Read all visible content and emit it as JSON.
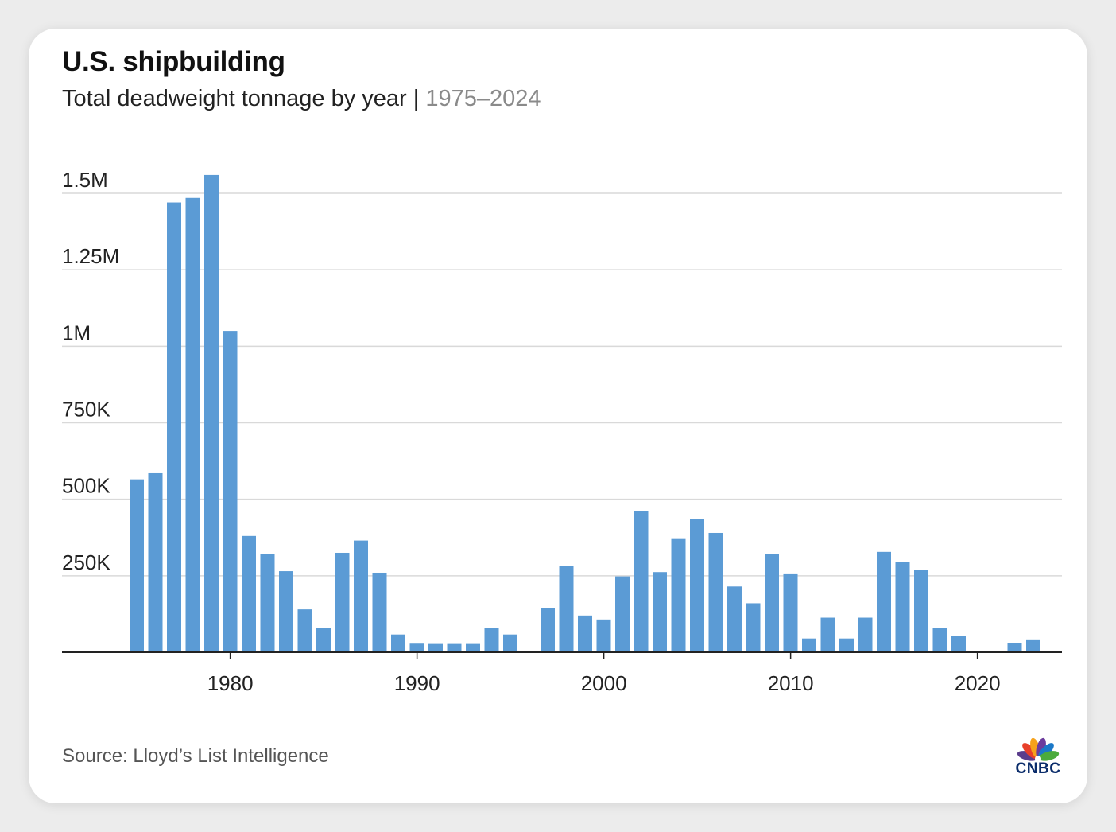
{
  "header": {
    "title": "U.S. shipbuilding",
    "subtitle": "Total deadweight tonnage by year",
    "separator": "|",
    "range": "1975–2024"
  },
  "footer": {
    "source": "Source: Lloyd’s List Intelligence",
    "logo_text": "CNBC"
  },
  "colors": {
    "bar": "#5b9bd5",
    "grid": "#d9d9d9",
    "axis": "#222222"
  },
  "chart_data": {
    "type": "bar",
    "title": "U.S. shipbuilding",
    "subtitle": "Total deadweight tonnage by year | 1975–2024",
    "xlabel": "",
    "ylabel": "",
    "ylim": [
      0,
      1500000
    ],
    "grid": true,
    "y_ticks": [
      {
        "value": 250000,
        "label": "250K"
      },
      {
        "value": 500000,
        "label": "500K"
      },
      {
        "value": 750000,
        "label": "750K"
      },
      {
        "value": 1000000,
        "label": "1M"
      },
      {
        "value": 1250000,
        "label": "1.25M"
      },
      {
        "value": 1500000,
        "label": "1.5M"
      }
    ],
    "x_ticks": [
      1980,
      1990,
      2000,
      2010,
      2020
    ],
    "categories": [
      1975,
      1976,
      1977,
      1978,
      1979,
      1980,
      1981,
      1982,
      1983,
      1984,
      1985,
      1986,
      1987,
      1988,
      1989,
      1990,
      1991,
      1992,
      1993,
      1994,
      1995,
      1996,
      1997,
      1998,
      1999,
      2000,
      2001,
      2002,
      2003,
      2004,
      2005,
      2006,
      2007,
      2008,
      2009,
      2010,
      2011,
      2012,
      2013,
      2014,
      2015,
      2016,
      2017,
      2018,
      2019,
      2020,
      2021,
      2022,
      2023,
      2024
    ],
    "values": [
      565000,
      585000,
      1470000,
      1485000,
      1560000,
      1050000,
      380000,
      320000,
      265000,
      140000,
      80000,
      325000,
      365000,
      260000,
      58000,
      28000,
      27000,
      27000,
      27000,
      80000,
      58000,
      0,
      145000,
      283000,
      120000,
      107000,
      248000,
      462000,
      262000,
      370000,
      435000,
      390000,
      215000,
      160000,
      322000,
      255000,
      45000,
      113000,
      45000,
      113000,
      328000,
      295000,
      270000,
      78000,
      52000,
      0,
      0,
      30000,
      42000,
      0
    ]
  }
}
